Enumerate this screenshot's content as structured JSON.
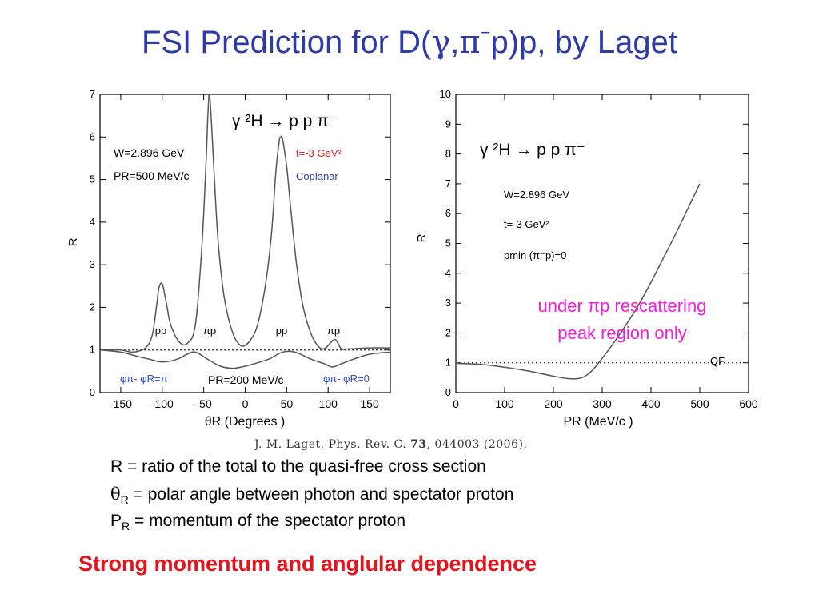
{
  "slide": {
    "title_pre": "FSI Prediction for D(",
    "title_gamma": "γ",
    "title_comma": ",",
    "title_pi": "π",
    "title_sup": "−",
    "title_post": "p)p, by Laget",
    "reference_pre": "J. M. Laget, Phys. Rev. C. ",
    "reference_vol": "73",
    "reference_post": ", 044003 (2006).",
    "definitions": {
      "r": "R = ratio of the total to the quasi-free cross section",
      "theta_sym": "θ",
      "theta_sub": "R",
      "theta_text": " = polar angle between photon and spectator proton",
      "p_sym": "P",
      "p_sub": "R",
      "p_text": " = momentum of the spectator proton"
    },
    "conclusion": "Strong momentum and anglular dependence",
    "colors": {
      "title": "#2e3aa6",
      "conclusion": "#e8131a",
      "annotation": "#f020d8",
      "t_label": "#e02020",
      "coplanar": "#3040a0",
      "phi_label": "#3050d0"
    }
  },
  "chart_data": [
    {
      "type": "line",
      "xlabel": "θR  (Degrees )",
      "ylabel": "R",
      "xlim": [
        -175,
        175
      ],
      "ylim": [
        0,
        7
      ],
      "xticks": [
        -150,
        -100,
        -50,
        0,
        50,
        100,
        150
      ],
      "yticks": [
        0,
        1,
        2,
        3,
        4,
        5,
        6,
        7
      ],
      "annotations": {
        "reaction": "γ ²H → p p π⁻",
        "w": "W=2.896 GeV",
        "pr": "PR=500 MeV/c",
        "t": "t=-3 GeV²",
        "coplanar": "Coplanar",
        "pr_lower": "PR=200 MeV/c",
        "phi_left": "φπ- φR=π",
        "phi_right": "φπ- φR=0",
        "peak_labels": [
          "pp",
          "πp",
          "pp",
          "πp"
        ]
      },
      "reference_line": {
        "y": 1,
        "style": "dotted"
      },
      "series": [
        {
          "x": [
            -175,
            -150,
            -135,
            -120,
            -112,
            -107,
            -104,
            -100,
            -95,
            -90,
            -80,
            -70,
            -60,
            -52,
            -47,
            -45,
            -43,
            -40,
            -36,
            -32,
            -25,
            -15,
            -5,
            5,
            15,
            25,
            32,
            37,
            41,
            43,
            45,
            50,
            55,
            62,
            70,
            80,
            90,
            97,
            102,
            108,
            112,
            116,
            120,
            130,
            150,
            175
          ],
          "y": [
            1.0,
            1.0,
            0.95,
            1.05,
            1.35,
            2.0,
            2.45,
            2.55,
            2.1,
            1.6,
            1.2,
            1.15,
            1.6,
            3.5,
            5.5,
            6.5,
            7.0,
            6.1,
            4.6,
            3.4,
            2.2,
            1.4,
            1.1,
            1.2,
            1.6,
            2.6,
            3.8,
            5.2,
            5.9,
            6.0,
            5.95,
            5.3,
            4.3,
            3.0,
            2.0,
            1.35,
            1.05,
            1.05,
            1.15,
            1.25,
            1.15,
            1.02,
            1.02,
            1.03,
            1.05,
            1.05
          ]
        },
        {
          "x": [
            -175,
            -150,
            -130,
            -115,
            -105,
            -100,
            -90,
            -80,
            -70,
            -60,
            -45,
            -30,
            -15,
            0,
            15,
            30,
            45,
            60,
            80,
            95,
            105,
            115,
            130,
            150,
            175
          ],
          "y": [
            1.0,
            0.95,
            0.85,
            0.78,
            0.73,
            0.72,
            0.74,
            0.8,
            0.9,
            0.95,
            0.78,
            0.62,
            0.57,
            0.62,
            0.7,
            0.8,
            0.95,
            0.95,
            0.78,
            0.68,
            0.6,
            0.67,
            0.78,
            0.9,
            0.95
          ]
        }
      ]
    },
    {
      "type": "line",
      "xlabel": "PR  (MeV/c )",
      "ylabel": "R",
      "xlim": [
        0,
        600
      ],
      "ylim": [
        0,
        10
      ],
      "xticks": [
        0,
        100,
        200,
        300,
        400,
        500,
        600
      ],
      "yticks": [
        0,
        1,
        2,
        3,
        4,
        5,
        6,
        7,
        8,
        9,
        10
      ],
      "annotations": {
        "reaction": "γ ²H → p p π⁻",
        "w": "W=2.896 GeV",
        "t": "t=-3 GeV²",
        "pmin": "pmin (π⁻p)=0",
        "qf": "QF",
        "overlay_line1": "under πp rescattering",
        "overlay_line2": "peak region only"
      },
      "reference_line": {
        "y": 1,
        "style": "dotted"
      },
      "series": [
        {
          "x": [
            0,
            50,
            100,
            150,
            200,
            230,
            250,
            265,
            280,
            300,
            325,
            350,
            375,
            400,
            425,
            450,
            475,
            500
          ],
          "y": [
            0.98,
            0.95,
            0.85,
            0.72,
            0.55,
            0.47,
            0.47,
            0.55,
            0.75,
            1.15,
            1.7,
            2.3,
            2.95,
            3.7,
            4.5,
            5.3,
            6.15,
            7.0
          ]
        }
      ]
    }
  ]
}
